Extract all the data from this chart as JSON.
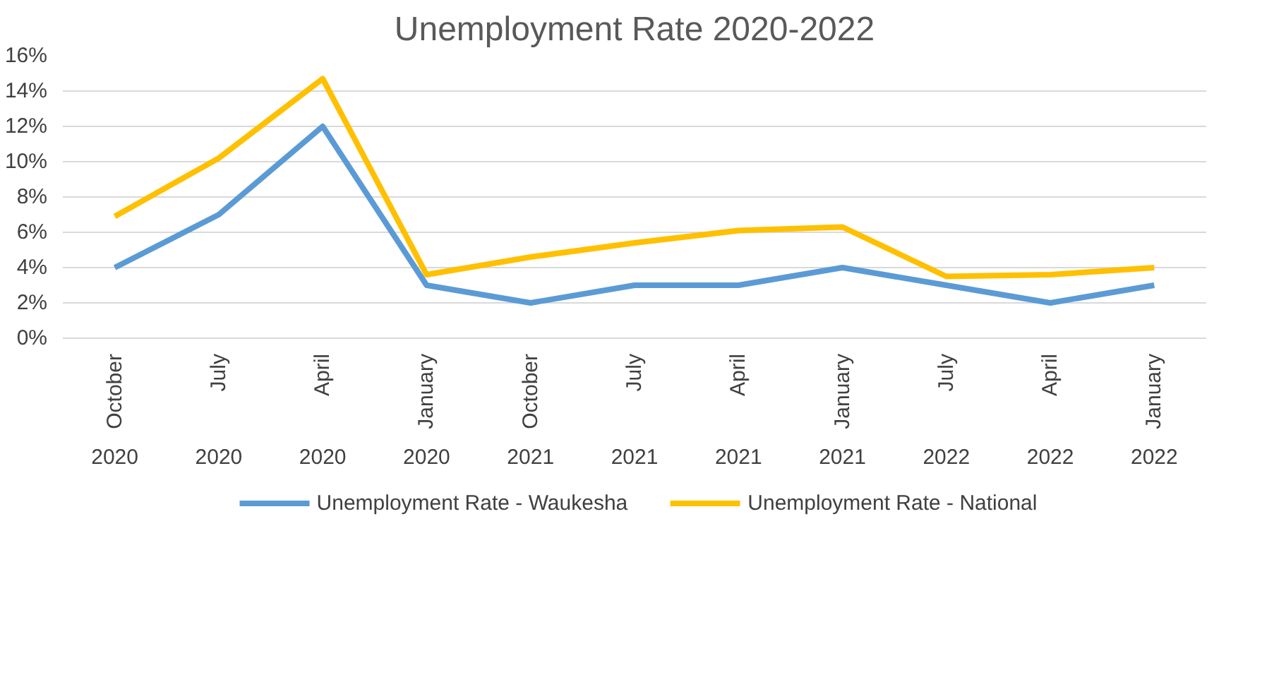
{
  "chart_data": {
    "type": "line",
    "title": "Unemployment Rate 2020-2022",
    "categories": [
      "October 2020",
      "July 2020",
      "April 2020",
      "January 2020",
      "October 2021",
      "July 2021",
      "April 2021",
      "January 2021",
      "July 2022",
      "April 2022",
      "January 2022"
    ],
    "series": [
      {
        "name": "Unemployment Rate - Waukesha",
        "color": "#5b9bd5",
        "values": [
          4,
          7,
          12,
          3,
          2,
          3,
          3,
          4,
          3,
          2,
          3
        ]
      },
      {
        "name": "Unemployment Rate - National",
        "color": "#ffc000",
        "values": [
          6.9,
          10.2,
          14.7,
          3.6,
          4.6,
          5.4,
          6.1,
          6.3,
          3.5,
          3.6,
          4.0
        ]
      }
    ],
    "ylim": [
      0,
      16
    ],
    "yticks": [
      {
        "value": 0,
        "label": "0%"
      },
      {
        "value": 2,
        "label": "2%"
      },
      {
        "value": 4,
        "label": "4%"
      },
      {
        "value": 6,
        "label": "6%"
      },
      {
        "value": 8,
        "label": "8%"
      },
      {
        "value": 10,
        "label": "10%"
      },
      {
        "value": 12,
        "label": "12%"
      },
      {
        "value": 14,
        "label": "14%"
      },
      {
        "value": 16,
        "label": "16%"
      }
    ],
    "grid": "y",
    "legend": "bottom",
    "marker": "none",
    "line_style": "solid"
  }
}
